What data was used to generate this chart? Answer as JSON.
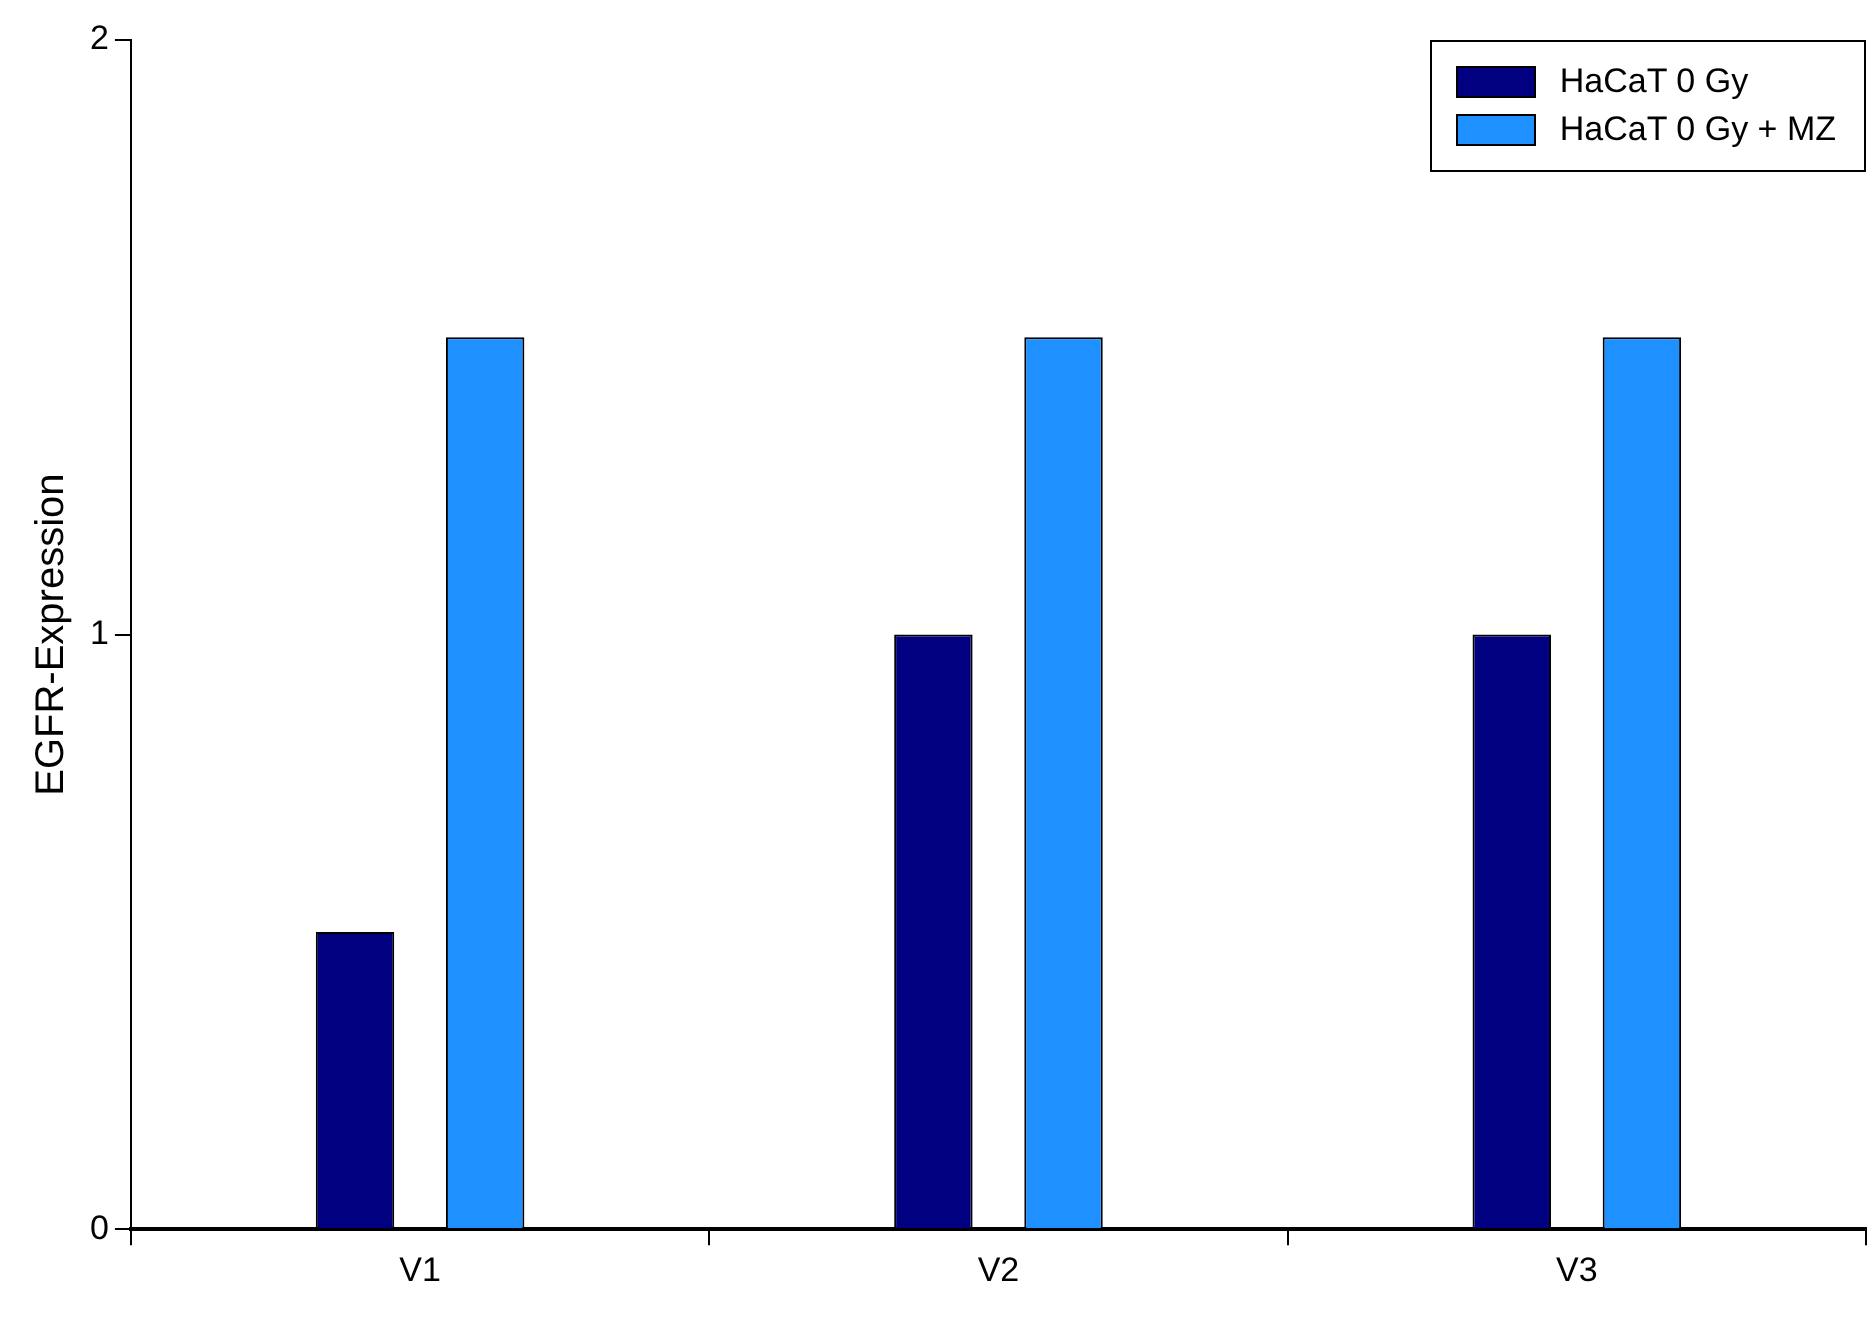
{
  "chart_data": {
    "type": "bar",
    "ylabel": "EGFR-Expression",
    "categories": [
      "V1",
      "V2",
      "V3"
    ],
    "series": [
      {
        "name": "HaCaT 0 Gy",
        "color": "#000080",
        "values": [
          0.5,
          1,
          1
        ]
      },
      {
        "name": "HaCaT 0 Gy + MZ",
        "color": "#1e90ff",
        "values": [
          1.5,
          1.5,
          1.5
        ]
      }
    ],
    "ylim": [
      0,
      2
    ],
    "yticks": [
      0,
      1,
      2
    ],
    "grid": false,
    "legend": "top right"
  }
}
